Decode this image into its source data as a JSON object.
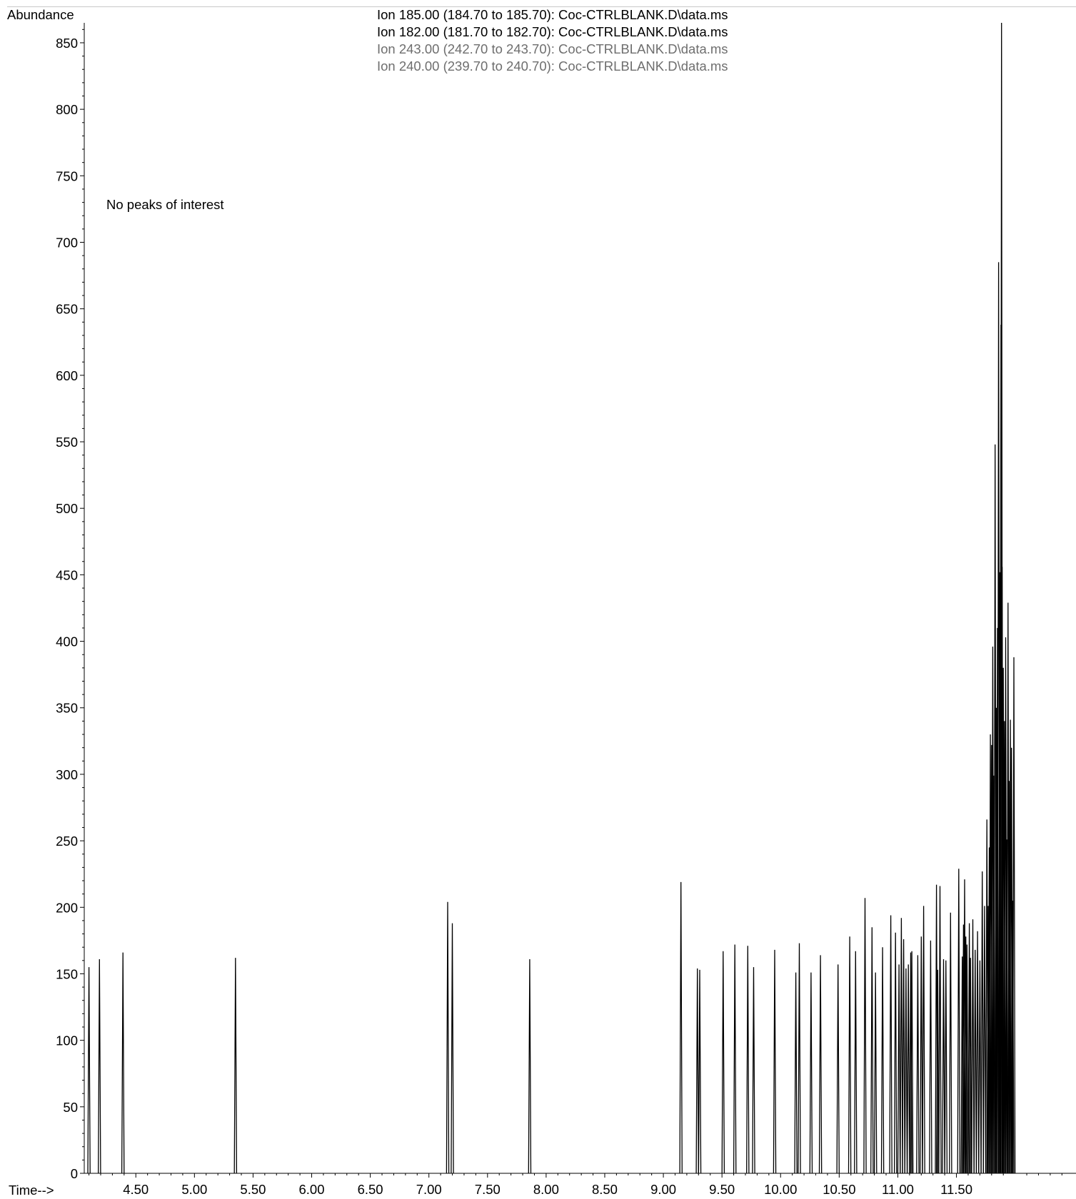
{
  "chart_data": {
    "type": "line",
    "ylabel": "Abundance",
    "xlabel": "Time-->",
    "annotation": "No peaks of interest",
    "legend": [
      {
        "text": "Ion 185.00 (184.70 to 185.70): Coc-CTRLBLANK.D\\data.ms",
        "color": "#000000"
      },
      {
        "text": "Ion 182.00 (181.70 to 182.70): Coc-CTRLBLANK.D\\data.ms",
        "color": "#000000"
      },
      {
        "text": "Ion 243.00 (242.70 to 243.70): Coc-CTRLBLANK.D\\data.ms",
        "color": "#6e6e6e"
      },
      {
        "text": "Ion 240.00 (239.70 to 240.70): Coc-CTRLBLANK.D\\data.ms",
        "color": "#6e6e6e"
      }
    ],
    "xlim": [
      4.06,
      12.52
    ],
    "ylim": [
      0,
      865
    ],
    "xticks": [
      "4.50",
      "5.00",
      "5.50",
      "6.00",
      "6.50",
      "7.00",
      "7.50",
      "8.00",
      "8.50",
      "9.00",
      "9.50",
      "10.00",
      "10.50",
      "11.00",
      "11.50"
    ],
    "yticks": [
      "0",
      "50",
      "100",
      "150",
      "200",
      "250",
      "300",
      "350",
      "400",
      "450",
      "500",
      "550",
      "600",
      "650",
      "700",
      "750",
      "800",
      "850"
    ],
    "legend_placement": "top-center",
    "grid": false,
    "peaks": [
      {
        "x": 4.1,
        "y": 155
      },
      {
        "x": 4.19,
        "y": 161
      },
      {
        "x": 4.39,
        "y": 166
      },
      {
        "x": 5.35,
        "y": 162
      },
      {
        "x": 7.16,
        "y": 204
      },
      {
        "x": 7.2,
        "y": 188
      },
      {
        "x": 7.86,
        "y": 161
      },
      {
        "x": 9.15,
        "y": 219
      },
      {
        "x": 9.29,
        "y": 154
      },
      {
        "x": 9.31,
        "y": 153
      },
      {
        "x": 9.51,
        "y": 167
      },
      {
        "x": 9.61,
        "y": 172
      },
      {
        "x": 9.72,
        "y": 171
      },
      {
        "x": 9.77,
        "y": 155
      },
      {
        "x": 9.95,
        "y": 168
      },
      {
        "x": 10.13,
        "y": 151
      },
      {
        "x": 10.16,
        "y": 173
      },
      {
        "x": 10.26,
        "y": 151
      },
      {
        "x": 10.34,
        "y": 164
      },
      {
        "x": 10.49,
        "y": 157
      },
      {
        "x": 10.59,
        "y": 178
      },
      {
        "x": 10.64,
        "y": 167
      },
      {
        "x": 10.72,
        "y": 207
      },
      {
        "x": 10.78,
        "y": 185
      },
      {
        "x": 10.81,
        "y": 151
      },
      {
        "x": 10.87,
        "y": 170
      },
      {
        "x": 10.94,
        "y": 194
      },
      {
        "x": 10.98,
        "y": 181
      },
      {
        "x": 11.01,
        "y": 157
      },
      {
        "x": 11.03,
        "y": 192
      },
      {
        "x": 11.05,
        "y": 176
      },
      {
        "x": 11.07,
        "y": 154
      },
      {
        "x": 11.09,
        "y": 157
      },
      {
        "x": 11.11,
        "y": 166
      },
      {
        "x": 11.12,
        "y": 167
      },
      {
        "x": 11.17,
        "y": 164
      },
      {
        "x": 11.2,
        "y": 178
      },
      {
        "x": 11.22,
        "y": 201
      },
      {
        "x": 11.28,
        "y": 175
      },
      {
        "x": 11.33,
        "y": 217
      },
      {
        "x": 11.34,
        "y": 153
      },
      {
        "x": 11.36,
        "y": 216
      },
      {
        "x": 11.39,
        "y": 161
      },
      {
        "x": 11.41,
        "y": 160
      },
      {
        "x": 11.45,
        "y": 196
      },
      {
        "x": 11.52,
        "y": 229
      },
      {
        "x": 11.55,
        "y": 163
      },
      {
        "x": 11.56,
        "y": 187
      },
      {
        "x": 11.57,
        "y": 221
      },
      {
        "x": 11.58,
        "y": 178
      },
      {
        "x": 11.59,
        "y": 172
      },
      {
        "x": 11.61,
        "y": 188
      },
      {
        "x": 11.62,
        "y": 162
      },
      {
        "x": 11.64,
        "y": 191
      },
      {
        "x": 11.66,
        "y": 168
      },
      {
        "x": 11.68,
        "y": 182
      },
      {
        "x": 11.7,
        "y": 160
      },
      {
        "x": 11.72,
        "y": 227
      },
      {
        "x": 11.74,
        "y": 201
      },
      {
        "x": 11.76,
        "y": 266
      },
      {
        "x": 11.77,
        "y": 201
      },
      {
        "x": 11.78,
        "y": 245
      },
      {
        "x": 11.79,
        "y": 330
      },
      {
        "x": 11.8,
        "y": 322
      },
      {
        "x": 11.81,
        "y": 396
      },
      {
        "x": 11.82,
        "y": 299
      },
      {
        "x": 11.83,
        "y": 548
      },
      {
        "x": 11.84,
        "y": 350
      },
      {
        "x": 11.85,
        "y": 410
      },
      {
        "x": 11.86,
        "y": 685
      },
      {
        "x": 11.87,
        "y": 452
      },
      {
        "x": 11.88,
        "y": 638
      },
      {
        "x": 11.885,
        "y": 865
      },
      {
        "x": 11.89,
        "y": 456
      },
      {
        "x": 11.9,
        "y": 380
      },
      {
        "x": 11.91,
        "y": 340
      },
      {
        "x": 11.92,
        "y": 403
      },
      {
        "x": 11.93,
        "y": 251
      },
      {
        "x": 11.94,
        "y": 429
      },
      {
        "x": 11.95,
        "y": 295
      },
      {
        "x": 11.96,
        "y": 341
      },
      {
        "x": 11.97,
        "y": 320
      },
      {
        "x": 11.98,
        "y": 205
      },
      {
        "x": 11.99,
        "y": 388
      }
    ]
  }
}
